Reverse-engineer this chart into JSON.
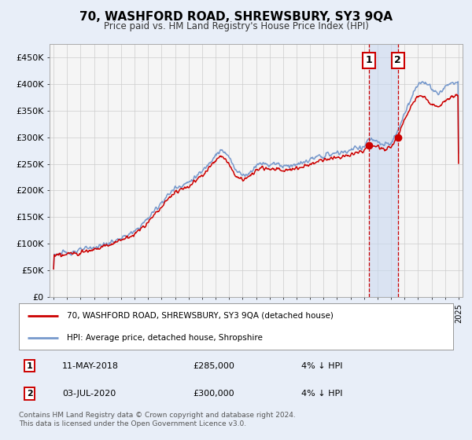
{
  "title": "70, WASHFORD ROAD, SHREWSBURY, SY3 9QA",
  "subtitle": "Price paid vs. HM Land Registry's House Price Index (HPI)",
  "ylabel_ticks": [
    "£0",
    "£50K",
    "£100K",
    "£150K",
    "£200K",
    "£250K",
    "£300K",
    "£350K",
    "£400K",
    "£450K"
  ],
  "ytick_values": [
    0,
    50000,
    100000,
    150000,
    200000,
    250000,
    300000,
    350000,
    400000,
    450000
  ],
  "ylim": [
    0,
    475000
  ],
  "xlim_start": 1994.7,
  "xlim_end": 2025.3,
  "legend_line1": "70, WASHFORD ROAD, SHREWSBURY, SY3 9QA (detached house)",
  "legend_line2": "HPI: Average price, detached house, Shropshire",
  "line_color_red": "#cc0000",
  "line_color_blue": "#7799cc",
  "marker1_date": "11-MAY-2018",
  "marker1_x": 2018.36,
  "marker1_price": 285000,
  "marker2_date": "03-JUL-2020",
  "marker2_x": 2020.5,
  "marker2_price": 300000,
  "footnote": "Contains HM Land Registry data © Crown copyright and database right 2024.\nThis data is licensed under the Open Government Licence v3.0.",
  "background_color": "#e8eef8",
  "plot_bg": "#f5f5f5",
  "grid_color": "#cccccc",
  "shade_color": "#c8d8f0"
}
